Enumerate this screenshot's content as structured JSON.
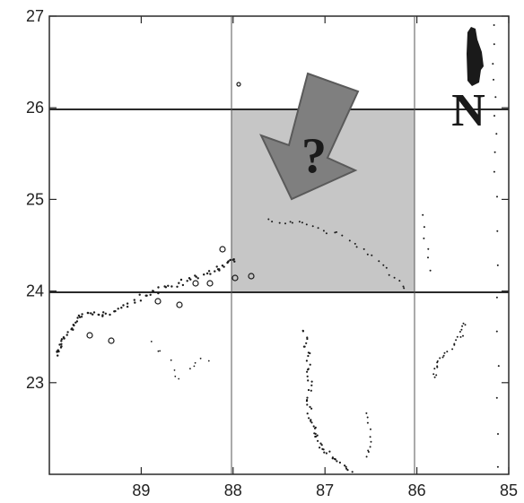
{
  "axes": {
    "lon_ticks": [
      {
        "value": 89,
        "label": "89"
      },
      {
        "value": 88,
        "label": "88"
      },
      {
        "value": 87,
        "label": "87"
      },
      {
        "value": 86,
        "label": "86"
      },
      {
        "value": 85,
        "label": "85"
      }
    ],
    "lat_ticks": [
      {
        "value": 27,
        "label": "27"
      },
      {
        "value": 26,
        "label": "26"
      },
      {
        "value": 25,
        "label": "25"
      },
      {
        "value": 24,
        "label": "24"
      },
      {
        "value": 23,
        "label": "23"
      }
    ],
    "lon_range": [
      90,
      85
    ],
    "lat_range": [
      22,
      27
    ]
  },
  "highlight_region": {
    "lon_range": [
      88,
      86
    ],
    "lat_range": [
      24,
      26
    ],
    "color": "#c6c6c6"
  },
  "arrow": {
    "color": "#7f7f7f",
    "label": "?"
  },
  "north_arrow": {
    "letter": "N"
  },
  "colors": {
    "frame": "#2a2a2a",
    "points": "#1a1a1a",
    "arrow_edge": "#5a5a5a"
  }
}
